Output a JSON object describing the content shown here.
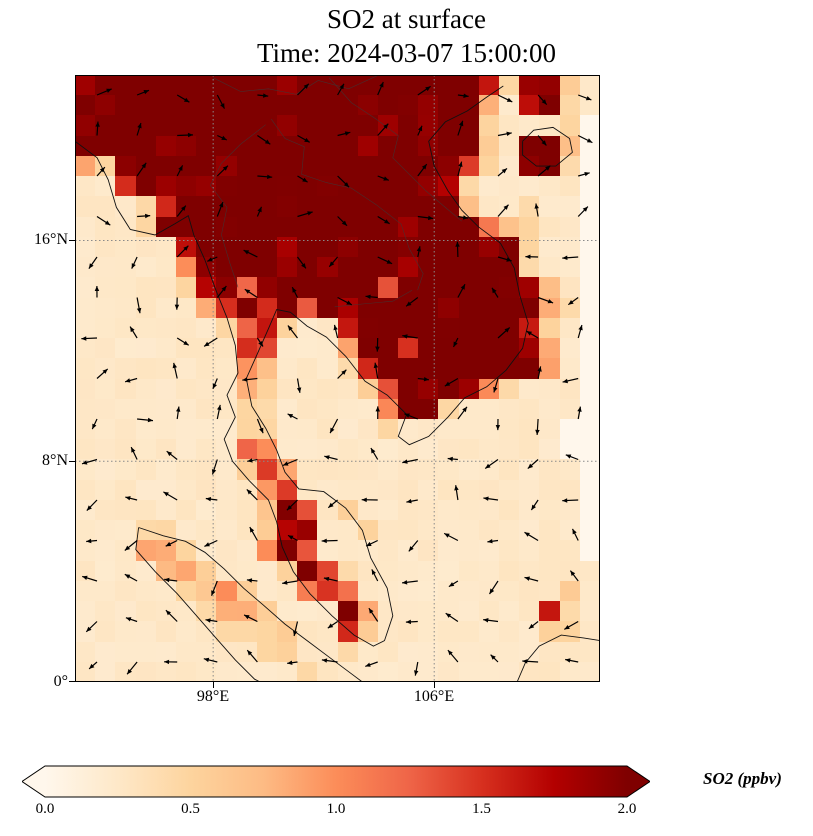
{
  "title": {
    "line1": "SO2 at surface",
    "line2": "Time: 2024-03-07 15:00:00"
  },
  "axes": {
    "y_ticks": [
      {
        "label": "16°N"
      },
      {
        "label": "8°N"
      },
      {
        "label": "0°"
      }
    ],
    "x_ticks": [
      {
        "label": "98°E"
      },
      {
        "label": "106°E"
      }
    ]
  },
  "colorbar": {
    "label": "SO2 (ppbv)",
    "ticks": [
      "0.0",
      "0.5",
      "1.0",
      "1.5",
      "2.0"
    ],
    "min": 0,
    "max": 2,
    "extend": "both",
    "colormap_stops": [
      [
        0.0,
        "#fff7ec"
      ],
      [
        0.125,
        "#fee8c8"
      ],
      [
        0.25,
        "#fdd49e"
      ],
      [
        0.375,
        "#fdbb84"
      ],
      [
        0.5,
        "#fc8d59"
      ],
      [
        0.625,
        "#ef6548"
      ],
      [
        0.75,
        "#d7301f"
      ],
      [
        0.875,
        "#b30000"
      ],
      [
        1.0,
        "#7f0000"
      ]
    ]
  },
  "chart_data": {
    "type": "heatmap",
    "title": "SO2 at surface",
    "subtitle": "Time: 2024-03-07 15:00:00",
    "variable": "SO2",
    "units": "ppbv",
    "colormap": "OrRd",
    "value_range": [
      0,
      2
    ],
    "lon_range": [
      93,
      112
    ],
    "lat_range": [
      0,
      22
    ],
    "x_tick_lons": [
      98,
      106
    ],
    "y_tick_lats": [
      16,
      8,
      0
    ],
    "grid_cols": 26,
    "grid_rows": 30,
    "value_per_digit": 0.25,
    "so2_grid_rows_north_to_south": [
      "99999999999999999999628921",
      "99999999999999999999317921",
      "99999999999999999999211120",
      "99999999999999999999219930",
      "42999999999999999986219920",
      "11699999999999999972111110",
      "11126999999999999893112110",
      "11128999989999998999432110",
      "11111699998999999999992110",
      "11111498999999998999992110",
      "11111289699899969999999310",
      "11111146969698999999999420",
      "11111112662116999999996210",
      "11111111661114996999998310",
      "11111111431112699899999410",
      "11111111321111269998421110",
      "11111111221111149821111110",
      "11111111221111121111111100",
      "11111111541111111111111100",
      "11111111264111111111111110",
      "11111111146111111111111110",
      "11111111139612111111111110",
      "11122111126911211111111110",
      "11133211149611111111111110",
      "11113321112962111111111111",
      "11111234211464111111111121",
      "11111123321119411111111621",
      "11111112222116211111111221",
      "11111111122112111111111111",
      "11111111111211111111111111"
    ],
    "overlays": {
      "wind_quiver": "surface wind vectors (black arrows)",
      "coastlines": true,
      "gridlines": "dotted at 98E, 106E, 16N, 8N"
    },
    "coastlines_lonlat": [
      [
        [
          93.0,
          19.6
        ],
        [
          93.8,
          19.0
        ],
        [
          94.2,
          18.2
        ],
        [
          94.5,
          17.2
        ],
        [
          95.0,
          16.4
        ],
        [
          95.9,
          16.2
        ],
        [
          96.6,
          16.6
        ],
        [
          97.1,
          16.9
        ],
        [
          97.3,
          16.2
        ],
        [
          97.7,
          15.3
        ],
        [
          98.1,
          14.2
        ],
        [
          98.5,
          13.2
        ],
        [
          98.8,
          12.2
        ],
        [
          98.9,
          11.2
        ],
        [
          98.5,
          10.4
        ],
        [
          98.8,
          9.6
        ],
        [
          98.4,
          8.8
        ],
        [
          98.7,
          8.0
        ],
        [
          99.3,
          7.3
        ],
        [
          100.0,
          6.6
        ],
        [
          100.3,
          5.8
        ],
        [
          100.5,
          4.9
        ],
        [
          100.9,
          4.0
        ],
        [
          101.5,
          3.2
        ],
        [
          102.3,
          2.4
        ],
        [
          103.1,
          1.7
        ],
        [
          103.8,
          1.3
        ],
        [
          104.2,
          1.5
        ],
        [
          104.5,
          2.4
        ],
        [
          104.3,
          3.4
        ],
        [
          103.7,
          4.5
        ],
        [
          103.4,
          5.5
        ],
        [
          102.8,
          6.3
        ],
        [
          102.0,
          6.9
        ],
        [
          101.1,
          7.0
        ],
        [
          100.6,
          7.6
        ],
        [
          100.3,
          8.4
        ],
        [
          99.9,
          9.2
        ],
        [
          99.4,
          10.0
        ],
        [
          99.2,
          11.0
        ],
        [
          99.6,
          11.9
        ],
        [
          100.0,
          12.8
        ],
        [
          100.3,
          13.5
        ],
        [
          100.8,
          13.4
        ],
        [
          101.4,
          12.9
        ],
        [
          102.1,
          12.5
        ],
        [
          102.8,
          11.8
        ],
        [
          103.5,
          10.9
        ],
        [
          104.3,
          10.4
        ],
        [
          105.0,
          9.7
        ],
        [
          104.7,
          8.9
        ],
        [
          105.1,
          8.6
        ],
        [
          105.8,
          8.9
        ],
        [
          106.5,
          9.6
        ],
        [
          107.1,
          10.3
        ],
        [
          107.9,
          10.7
        ],
        [
          108.6,
          11.3
        ],
        [
          109.2,
          12.1
        ],
        [
          109.4,
          13.0
        ],
        [
          109.1,
          14.0
        ],
        [
          108.9,
          15.0
        ],
        [
          108.4,
          15.9
        ],
        [
          107.6,
          16.5
        ],
        [
          107.0,
          17.1
        ],
        [
          106.5,
          17.8
        ],
        [
          106.0,
          18.7
        ],
        [
          105.8,
          19.6
        ],
        [
          106.4,
          20.3
        ],
        [
          107.2,
          20.7
        ],
        [
          107.9,
          21.2
        ],
        [
          108.5,
          21.6
        ]
      ],
      [
        [
          109.2,
          19.6
        ],
        [
          109.6,
          20.0
        ],
        [
          110.3,
          20.1
        ],
        [
          110.9,
          19.7
        ],
        [
          111.0,
          19.2
        ],
        [
          110.4,
          18.7
        ],
        [
          109.7,
          18.7
        ],
        [
          109.2,
          19.1
        ],
        [
          109.2,
          19.6
        ]
      ],
      [
        [
          95.3,
          5.6
        ],
        [
          95.2,
          4.8
        ],
        [
          95.9,
          4.0
        ],
        [
          96.7,
          3.2
        ],
        [
          97.4,
          2.4
        ],
        [
          98.1,
          1.6
        ],
        [
          98.8,
          0.8
        ],
        [
          99.5,
          0.1
        ],
        [
          99.7,
          0.0
        ]
      ],
      [
        [
          95.3,
          5.6
        ],
        [
          96.2,
          5.3
        ],
        [
          97.0,
          5.1
        ],
        [
          97.7,
          4.7
        ],
        [
          98.4,
          4.1
        ],
        [
          99.1,
          3.4
        ],
        [
          99.8,
          2.8
        ],
        [
          100.6,
          2.1
        ],
        [
          101.4,
          1.5
        ],
        [
          102.2,
          0.9
        ],
        [
          103.0,
          0.3
        ],
        [
          103.4,
          0.0
        ]
      ],
      [
        [
          109.0,
          0.0
        ],
        [
          109.3,
          0.7
        ],
        [
          109.8,
          1.3
        ],
        [
          110.6,
          1.7
        ],
        [
          111.4,
          1.6
        ],
        [
          112.0,
          1.5
        ]
      ]
    ],
    "borders_lonlat": [
      [
        [
          99.9,
          20.2
        ],
        [
          99.0,
          19.5
        ],
        [
          98.3,
          18.8
        ],
        [
          97.9,
          18.0
        ],
        [
          98.5,
          17.2
        ],
        [
          98.3,
          16.2
        ],
        [
          98.6,
          15.2
        ],
        [
          98.9,
          14.3
        ]
      ],
      [
        [
          100.1,
          20.4
        ],
        [
          100.6,
          19.7
        ],
        [
          101.3,
          19.4
        ],
        [
          101.2,
          18.4
        ],
        [
          102.1,
          18.1
        ],
        [
          103.0,
          17.9
        ],
        [
          103.9,
          17.3
        ],
        [
          104.8,
          16.6
        ],
        [
          105.1,
          15.7
        ],
        [
          105.6,
          14.8
        ],
        [
          105.4,
          14.2
        ]
      ],
      [
        [
          102.4,
          13.6
        ],
        [
          103.4,
          13.7
        ],
        [
          104.5,
          13.8
        ],
        [
          105.2,
          14.2
        ]
      ],
      [
        [
          102.2,
          21.9
        ],
        [
          103.0,
          21.0
        ],
        [
          103.9,
          20.4
        ],
        [
          104.7,
          19.8
        ],
        [
          104.5,
          19.0
        ],
        [
          105.1,
          18.4
        ],
        [
          105.7,
          17.8
        ],
        [
          106.4,
          17.2
        ],
        [
          107.0,
          16.7
        ]
      ],
      [
        [
          98.0,
          21.9
        ],
        [
          99.0,
          21.4
        ],
        [
          100.0,
          21.5
        ],
        [
          101.0,
          21.3
        ],
        [
          101.8,
          21.8
        ],
        [
          102.9,
          21.5
        ],
        [
          104.0,
          22.0
        ]
      ]
    ]
  }
}
